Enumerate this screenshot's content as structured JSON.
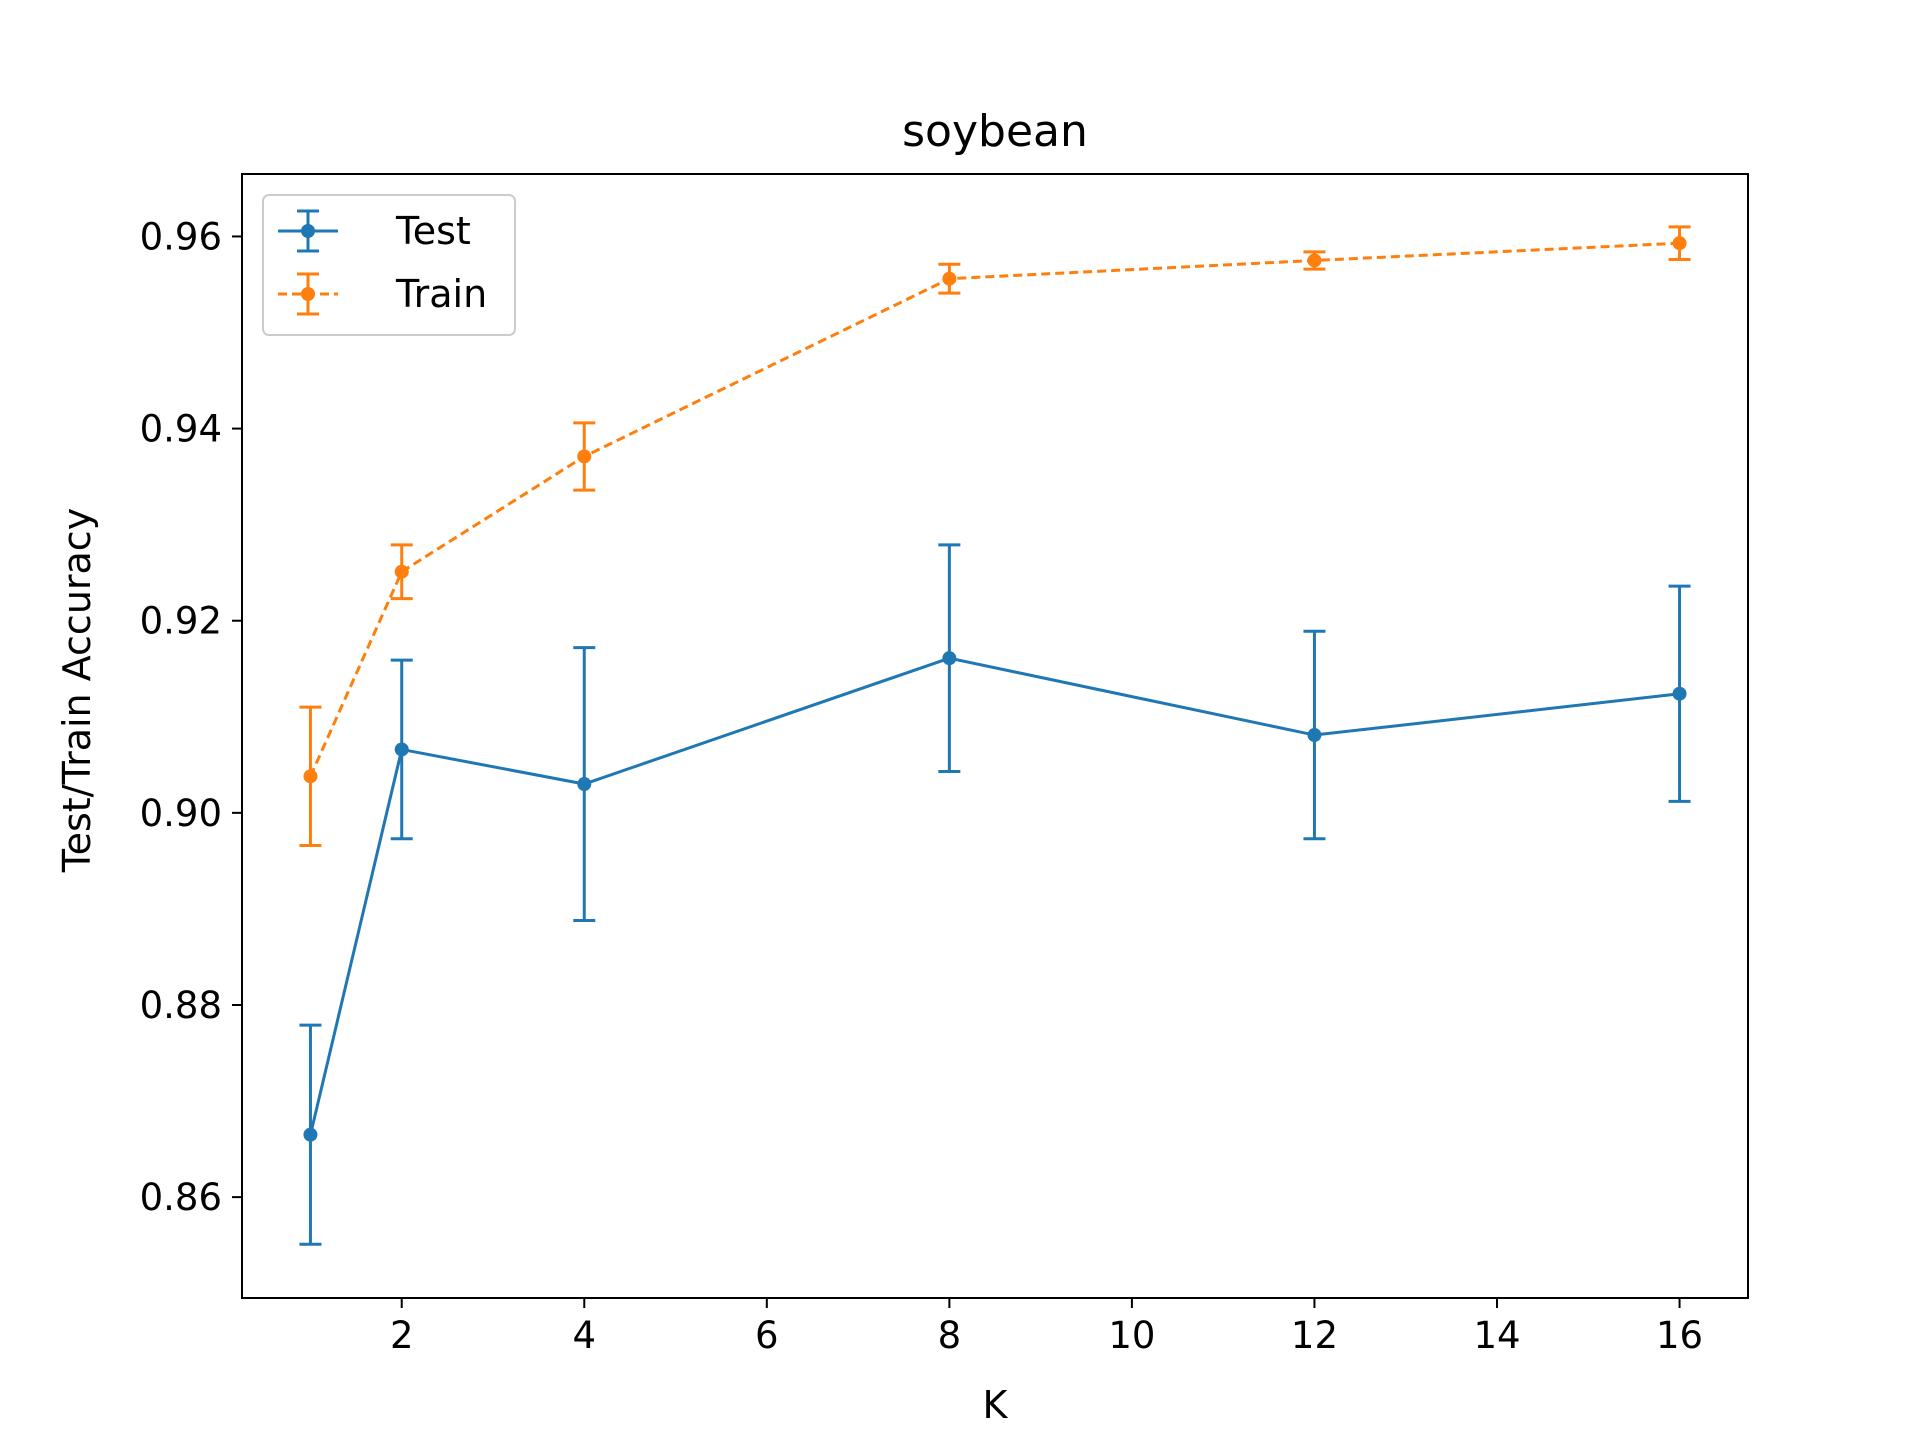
{
  "chart_data": {
    "type": "line",
    "title": "soybean",
    "xlabel": "K",
    "ylabel": "Test/Train Accuracy",
    "xlim": [
      0.25,
      16.75
    ],
    "ylim": [
      0.8495,
      0.9665
    ],
    "xticks": [
      2,
      4,
      6,
      8,
      10,
      12,
      14,
      16
    ],
    "yticks": [
      0.86,
      0.88,
      0.9,
      0.92,
      0.94,
      0.96
    ],
    "x": [
      1,
      2,
      4,
      8,
      12,
      16
    ],
    "grid": false,
    "legend_position": "top-left",
    "series": [
      {
        "name": "Test",
        "color": "#1f77b4",
        "linestyle": "solid",
        "values": [
          0.8665,
          0.9066,
          0.903,
          0.9161,
          0.9081,
          0.9124
        ],
        "errors": [
          0.0114,
          0.0093,
          0.0142,
          0.0118,
          0.0108,
          0.0112
        ]
      },
      {
        "name": "Train",
        "color": "#ff7f0e",
        "linestyle": "dashed",
        "values": [
          0.9038,
          0.9251,
          0.9371,
          0.9556,
          0.9575,
          0.9593
        ],
        "errors": [
          0.0072,
          0.0028,
          0.0035,
          0.0015,
          0.0009,
          0.0017
        ]
      }
    ]
  }
}
